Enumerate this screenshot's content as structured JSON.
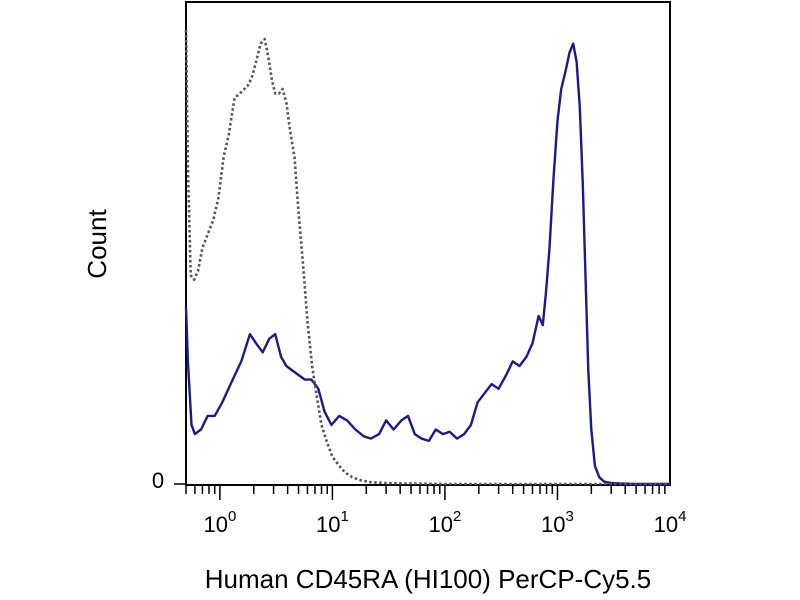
{
  "chart_data": {
    "type": "line",
    "title": "",
    "xlabel": "Human CD45RA (HI100) PerCP-Cy5.5",
    "ylabel": "Count",
    "xscale": "log",
    "xlim": [
      0.5,
      10000
    ],
    "ylim": [
      0,
      1
    ],
    "x_ticks": [
      {
        "value": 1,
        "base": "10",
        "exp": "0"
      },
      {
        "value": 10,
        "base": "10",
        "exp": "1"
      },
      {
        "value": 100,
        "base": "10",
        "exp": "2"
      },
      {
        "value": 1000,
        "base": "10",
        "exp": "3"
      },
      {
        "value": 10000,
        "base": "10",
        "exp": "4"
      }
    ],
    "y_ticks": [
      {
        "value": 0,
        "label": "0"
      }
    ],
    "grid": false,
    "legend": "none",
    "series": [
      {
        "color": "#1a1a8c",
        "style": "solid",
        "x": [
          0.5,
          0.52,
          0.56,
          0.6,
          0.68,
          0.78,
          0.9,
          1.05,
          1.3,
          1.55,
          1.85,
          2.1,
          2.4,
          2.75,
          3.1,
          3.5,
          3.9,
          4.4,
          5.0,
          5.7,
          6.5,
          7.5,
          8.5,
          9.8,
          11.5,
          13.5,
          16,
          19,
          22,
          26,
          30,
          35,
          41,
          47,
          54,
          62,
          72,
          83,
          96,
          110,
          128,
          148,
          170,
          195,
          225,
          260,
          300,
          350,
          400,
          460,
          530,
          600,
          680,
          740,
          790,
          850,
          920,
          1000,
          1080,
          1180,
          1280,
          1380,
          1480,
          1580,
          1680,
          1780,
          1880,
          2000,
          2150,
          2350,
          2600,
          3000,
          3600,
          5000,
          7000,
          10000
        ],
        "y": [
          0.39,
          0.27,
          0.13,
          0.11,
          0.12,
          0.15,
          0.15,
          0.18,
          0.23,
          0.27,
          0.33,
          0.31,
          0.29,
          0.32,
          0.33,
          0.28,
          0.26,
          0.25,
          0.24,
          0.23,
          0.23,
          0.21,
          0.16,
          0.13,
          0.15,
          0.14,
          0.12,
          0.105,
          0.1,
          0.11,
          0.14,
          0.12,
          0.14,
          0.15,
          0.11,
          0.1,
          0.095,
          0.12,
          0.11,
          0.115,
          0.1,
          0.11,
          0.13,
          0.18,
          0.2,
          0.22,
          0.21,
          0.24,
          0.27,
          0.26,
          0.28,
          0.31,
          0.37,
          0.35,
          0.42,
          0.52,
          0.67,
          0.8,
          0.87,
          0.91,
          0.95,
          0.97,
          0.93,
          0.83,
          0.66,
          0.45,
          0.25,
          0.12,
          0.04,
          0.015,
          0.005,
          0.002,
          0.001,
          0,
          0,
          0
        ]
      },
      {
        "color": "#555555",
        "style": "dotted",
        "x": [
          0.5,
          0.52,
          0.55,
          0.59,
          0.64,
          0.7,
          0.78,
          0.87,
          0.97,
          1.08,
          1.2,
          1.35,
          1.5,
          1.65,
          1.8,
          1.95,
          2.1,
          2.3,
          2.5,
          2.7,
          2.9,
          3.1,
          3.35,
          3.6,
          3.9,
          4.2,
          4.6,
          5.0,
          5.5,
          6.0,
          6.6,
          7.3,
          8.0,
          9.0,
          10.0,
          11.5,
          13.0,
          15.0,
          18.0,
          22.0,
          30.0,
          50.0,
          100,
          1000,
          10000
        ],
        "y": [
          1.0,
          0.7,
          0.46,
          0.45,
          0.47,
          0.52,
          0.55,
          0.58,
          0.63,
          0.72,
          0.77,
          0.85,
          0.86,
          0.87,
          0.88,
          0.9,
          0.93,
          0.97,
          0.98,
          0.94,
          0.89,
          0.86,
          0.86,
          0.87,
          0.84,
          0.78,
          0.72,
          0.6,
          0.48,
          0.36,
          0.26,
          0.19,
          0.13,
          0.09,
          0.06,
          0.04,
          0.025,
          0.015,
          0.008,
          0.004,
          0.002,
          0.001,
          0,
          0,
          0
        ]
      }
    ]
  }
}
